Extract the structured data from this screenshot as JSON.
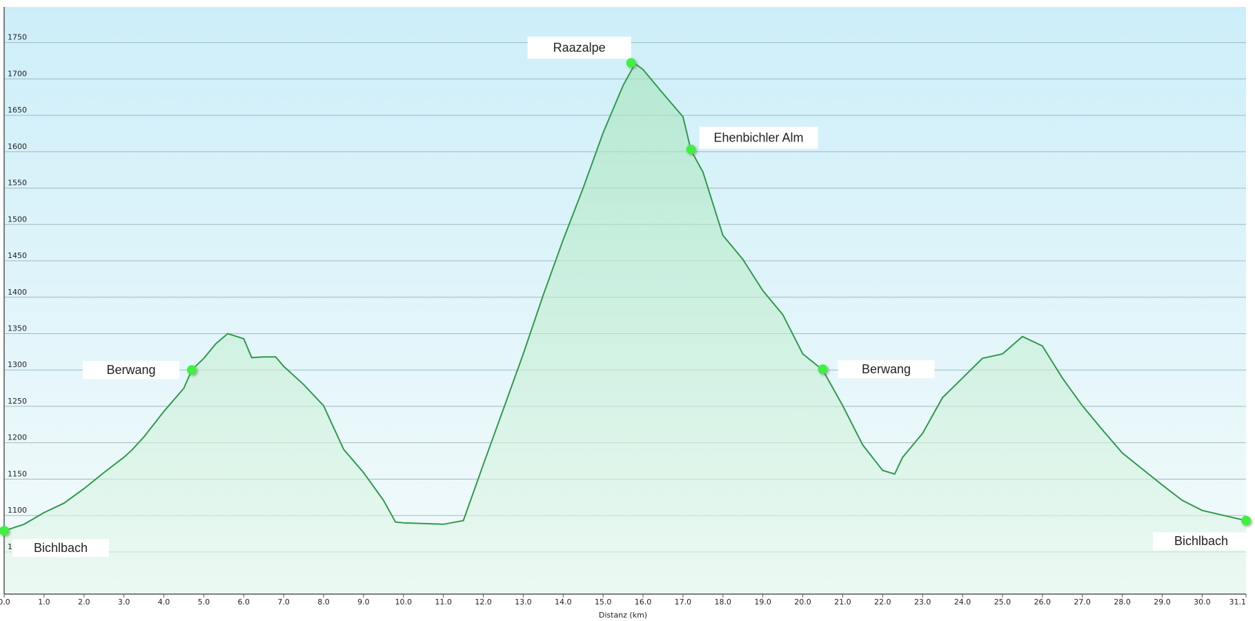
{
  "chart_data": {
    "type": "area",
    "x_label": "Distanz  (km)",
    "color": "#2e9a4a",
    "marker_color": "#3ff03f",
    "grid": true,
    "x": [
      0.0,
      0.5,
      1.0,
      1.5,
      2.0,
      2.5,
      3.0,
      3.2,
      3.5,
      4.0,
      4.5,
      4.7,
      5.0,
      5.3,
      5.6,
      6.0,
      6.2,
      6.5,
      6.8,
      7.0,
      7.5,
      8.0,
      8.5,
      9.0,
      9.5,
      9.8,
      10.0,
      11.0,
      11.5,
      12.0,
      12.5,
      13.0,
      13.5,
      14.0,
      14.5,
      15.0,
      15.5,
      15.8,
      16.0,
      16.5,
      17.0,
      17.2,
      17.5,
      18.0,
      18.5,
      19.0,
      19.5,
      20.0,
      20.5,
      21.0,
      21.5,
      22.0,
      22.3,
      22.5,
      23.0,
      23.5,
      24.0,
      24.5,
      25.0,
      25.5,
      26.0,
      26.5,
      27.0,
      27.5,
      28.0,
      28.5,
      29.0,
      29.5,
      30.0,
      31.1
    ],
    "values": [
      1079,
      1088,
      1104,
      1117,
      1137,
      1159,
      1180,
      1190,
      1208,
      1243,
      1275,
      1300,
      1316,
      1336,
      1350,
      1343,
      1317,
      1318,
      1318,
      1305,
      1280,
      1251,
      1191,
      1159,
      1121,
      1091,
      1090,
      1088,
      1093,
      1170,
      1246,
      1322,
      1403,
      1479,
      1550,
      1626,
      1691,
      1721,
      1713,
      1680,
      1648,
      1602,
      1572,
      1485,
      1452,
      1409,
      1376,
      1322,
      1300,
      1251,
      1197,
      1162,
      1157,
      1180,
      1213,
      1262,
      1289,
      1316,
      1322,
      1346,
      1333,
      1289,
      1251,
      1218,
      1186,
      1164,
      1142,
      1121,
      1107,
      1093
    ],
    "annotations": [
      {
        "label": "Bichlbach",
        "x": 0.0,
        "y": 1079
      },
      {
        "label": "Berwang",
        "x": 4.7,
        "y": 1300
      },
      {
        "label": "Raazalpe",
        "x": 15.7,
        "y": 1722
      },
      {
        "label": "Ehenbichler Alm",
        "x": 17.2,
        "y": 1603
      },
      {
        "label": "Berwang",
        "x": 20.5,
        "y": 1301
      },
      {
        "label": "Bichlbach",
        "x": 31.1,
        "y": 1093
      }
    ],
    "xlim": [
      0,
      31.1
    ],
    "xticks": [
      {
        "value": 0,
        "label": "0.0"
      },
      {
        "value": 1,
        "label": "1.0"
      },
      {
        "value": 2,
        "label": "2.0"
      },
      {
        "value": 3,
        "label": "3.0"
      },
      {
        "value": 4,
        "label": "4.0"
      },
      {
        "value": 5,
        "label": "5.0"
      },
      {
        "value": 6,
        "label": "6.0"
      },
      {
        "value": 7,
        "label": "7.0"
      },
      {
        "value": 8,
        "label": "8.0"
      },
      {
        "value": 9,
        "label": "9.0"
      },
      {
        "value": 10,
        "label": "10.0"
      },
      {
        "value": 11,
        "label": "11.0"
      },
      {
        "value": 12,
        "label": "12.0"
      },
      {
        "value": 13,
        "label": "13.0"
      },
      {
        "value": 14,
        "label": "14.0"
      },
      {
        "value": 15,
        "label": "15.0"
      },
      {
        "value": 16,
        "label": "16.0"
      },
      {
        "value": 17,
        "label": "17.0"
      },
      {
        "value": 18,
        "label": "18.0"
      },
      {
        "value": 19,
        "label": "19.0"
      },
      {
        "value": 20,
        "label": "20.0"
      },
      {
        "value": 21,
        "label": "21.0"
      },
      {
        "value": 22,
        "label": "22.0"
      },
      {
        "value": 23,
        "label": "23.0"
      },
      {
        "value": 24,
        "label": "24.0"
      },
      {
        "value": 25,
        "label": "25.0"
      },
      {
        "value": 26,
        "label": "26.0"
      },
      {
        "value": 27,
        "label": "27.0"
      },
      {
        "value": 28,
        "label": "28.0"
      },
      {
        "value": 29,
        "label": "29.0"
      },
      {
        "value": 30,
        "label": "30.0"
      },
      31.1
    ],
    "ylim": [
      992,
      1799
    ],
    "yticks": [
      {
        "value": 1050,
        "label": "1"
      },
      1100,
      1150,
      1200,
      1250,
      1300,
      1350,
      1400,
      1450,
      1500,
      1550,
      1600,
      1650,
      1700,
      1750
    ]
  }
}
